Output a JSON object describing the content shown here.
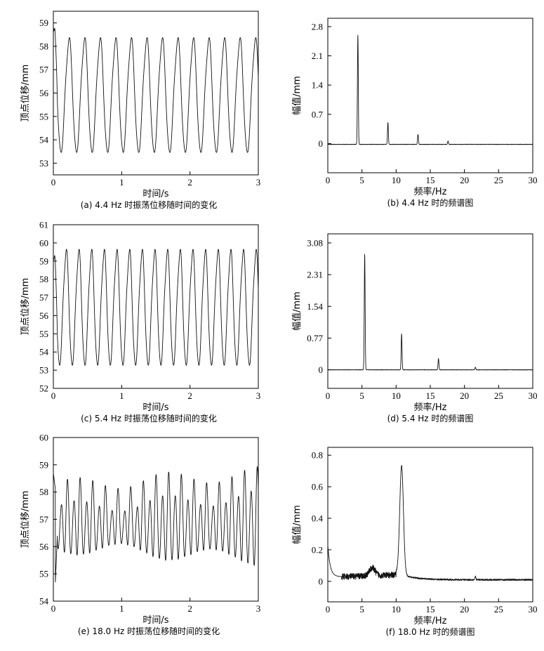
{
  "chart_data": [
    {
      "id": "a",
      "type": "line",
      "caption": "(a) 4.4 Hz 时振荡位移随时间的变化",
      "xlabel": "时间/s",
      "ylabel": "顶点位移/mm",
      "xlim": [
        0,
        3
      ],
      "ylim": [
        52.5,
        59.5
      ],
      "xticks": [
        0,
        1,
        2,
        3
      ],
      "yticks": [
        53,
        54,
        55,
        56,
        57,
        58,
        59
      ],
      "xtick_labels": [
        "0",
        "1",
        "2",
        "3"
      ],
      "ytick_labels": [
        "53",
        "54",
        "55",
        "56",
        "57",
        "58",
        "59"
      ],
      "series": [
        {
          "kind": "sine",
          "freq": 4.4,
          "min": 53.25,
          "max": 58.5,
          "shoulder": 0.25,
          "start": 58.9
        }
      ]
    },
    {
      "id": "b",
      "type": "line",
      "caption": "(b) 4.4 Hz 时的频谱图",
      "xlabel": "频率/Hz",
      "ylabel": "幅值/mm",
      "xlim": [
        0,
        30
      ],
      "ylim": [
        -0.7,
        3.0
      ],
      "xticks": [
        0,
        5,
        10,
        15,
        20,
        25,
        30
      ],
      "yticks": [
        0,
        0.7,
        1.4,
        2.1,
        2.8
      ],
      "xtick_labels": [
        "0",
        "5",
        "10",
        "15",
        "20",
        "25",
        "30"
      ],
      "ytick_labels": [
        "0",
        "0.7",
        "1.4",
        "2.1",
        "2.8"
      ],
      "series": [
        {
          "kind": "peaks",
          "peaks": [
            [
              4.4,
              2.6
            ],
            [
              8.8,
              0.5
            ],
            [
              13.2,
              0.22
            ],
            [
              17.6,
              0.06
            ]
          ],
          "baseline": -0.02
        }
      ]
    },
    {
      "id": "c",
      "type": "line",
      "caption": "(c) 5.4 Hz 时振荡位移随时间的变化",
      "xlabel": "时间/s",
      "ylabel": "顶点位移/mm",
      "xlim": [
        0,
        3
      ],
      "ylim": [
        52,
        61
      ],
      "xticks": [
        0,
        1,
        2,
        3
      ],
      "yticks": [
        52,
        53,
        54,
        55,
        56,
        57,
        58,
        59,
        60,
        61
      ],
      "xtick_labels": [
        "0",
        "1",
        "2",
        "3"
      ],
      "ytick_labels": [
        "52",
        "53",
        "54",
        "55",
        "56",
        "57",
        "58",
        "59",
        "60",
        "61"
      ],
      "series": [
        {
          "kind": "sine",
          "freq": 5.4,
          "min": 53.0,
          "max": 59.8,
          "shoulder": 0.35,
          "start": 59.2
        }
      ]
    },
    {
      "id": "d",
      "type": "line",
      "caption": "(d) 5.4 Hz 时的频谱图",
      "xlabel": "频率/Hz",
      "ylabel": "幅值/mm",
      "xlim": [
        0,
        30
      ],
      "ylim": [
        -0.45,
        3.3
      ],
      "xticks": [
        0,
        5,
        10,
        15,
        20,
        25,
        30
      ],
      "yticks": [
        0,
        0.77,
        1.54,
        2.31,
        3.08
      ],
      "xtick_labels": [
        "0",
        "5",
        "10",
        "15",
        "20",
        "25",
        "30"
      ],
      "ytick_labels": [
        "0",
        "0.77",
        "1.54",
        "2.31",
        "3.08"
      ],
      "series": [
        {
          "kind": "peaks",
          "peaks": [
            [
              5.4,
              2.8
            ],
            [
              10.8,
              0.87
            ],
            [
              16.2,
              0.27
            ],
            [
              21.6,
              0.06
            ]
          ],
          "baseline": 0.0
        }
      ]
    },
    {
      "id": "e",
      "type": "line",
      "caption": "(e) 18.0 Hz 时振荡位移随时间的变化",
      "xlabel": "时间/s",
      "ylabel": "顶点位移/mm",
      "xlim": [
        0,
        3
      ],
      "ylim": [
        54,
        60
      ],
      "xticks": [
        0,
        1,
        2,
        3
      ],
      "yticks": [
        54,
        55,
        56,
        57,
        58,
        59,
        60
      ],
      "xtick_labels": [
        "0",
        "1",
        "2",
        "3"
      ],
      "ytick_labels": [
        "54",
        "55",
        "56",
        "57",
        "58",
        "59",
        "60"
      ],
      "series": [
        {
          "kind": "noisy",
          "freq": 10.8,
          "min": 55.8,
          "max": 58.0,
          "start": 58.7,
          "dip": 54.7
        }
      ]
    },
    {
      "id": "f",
      "type": "line",
      "caption": "(f) 18.0 Hz 时的频谱图",
      "xlabel": "频率/Hz",
      "ylabel": "幅值/mm",
      "xlim": [
        0,
        30
      ],
      "ylim": [
        -0.13,
        0.85
      ],
      "xticks": [
        0,
        5,
        10,
        15,
        20,
        25,
        30
      ],
      "yticks": [
        0,
        0.2,
        0.4,
        0.6,
        0.8
      ],
      "xtick_labels": [
        "0",
        "5",
        "10",
        "15",
        "20",
        "25",
        "30"
      ],
      "ytick_labels": [
        "0",
        "0.2",
        "0.4",
        "0.6",
        "0.8"
      ],
      "series": [
        {
          "kind": "spectrum_f",
          "peak": [
            10.8,
            0.72
          ]
        }
      ]
    }
  ]
}
